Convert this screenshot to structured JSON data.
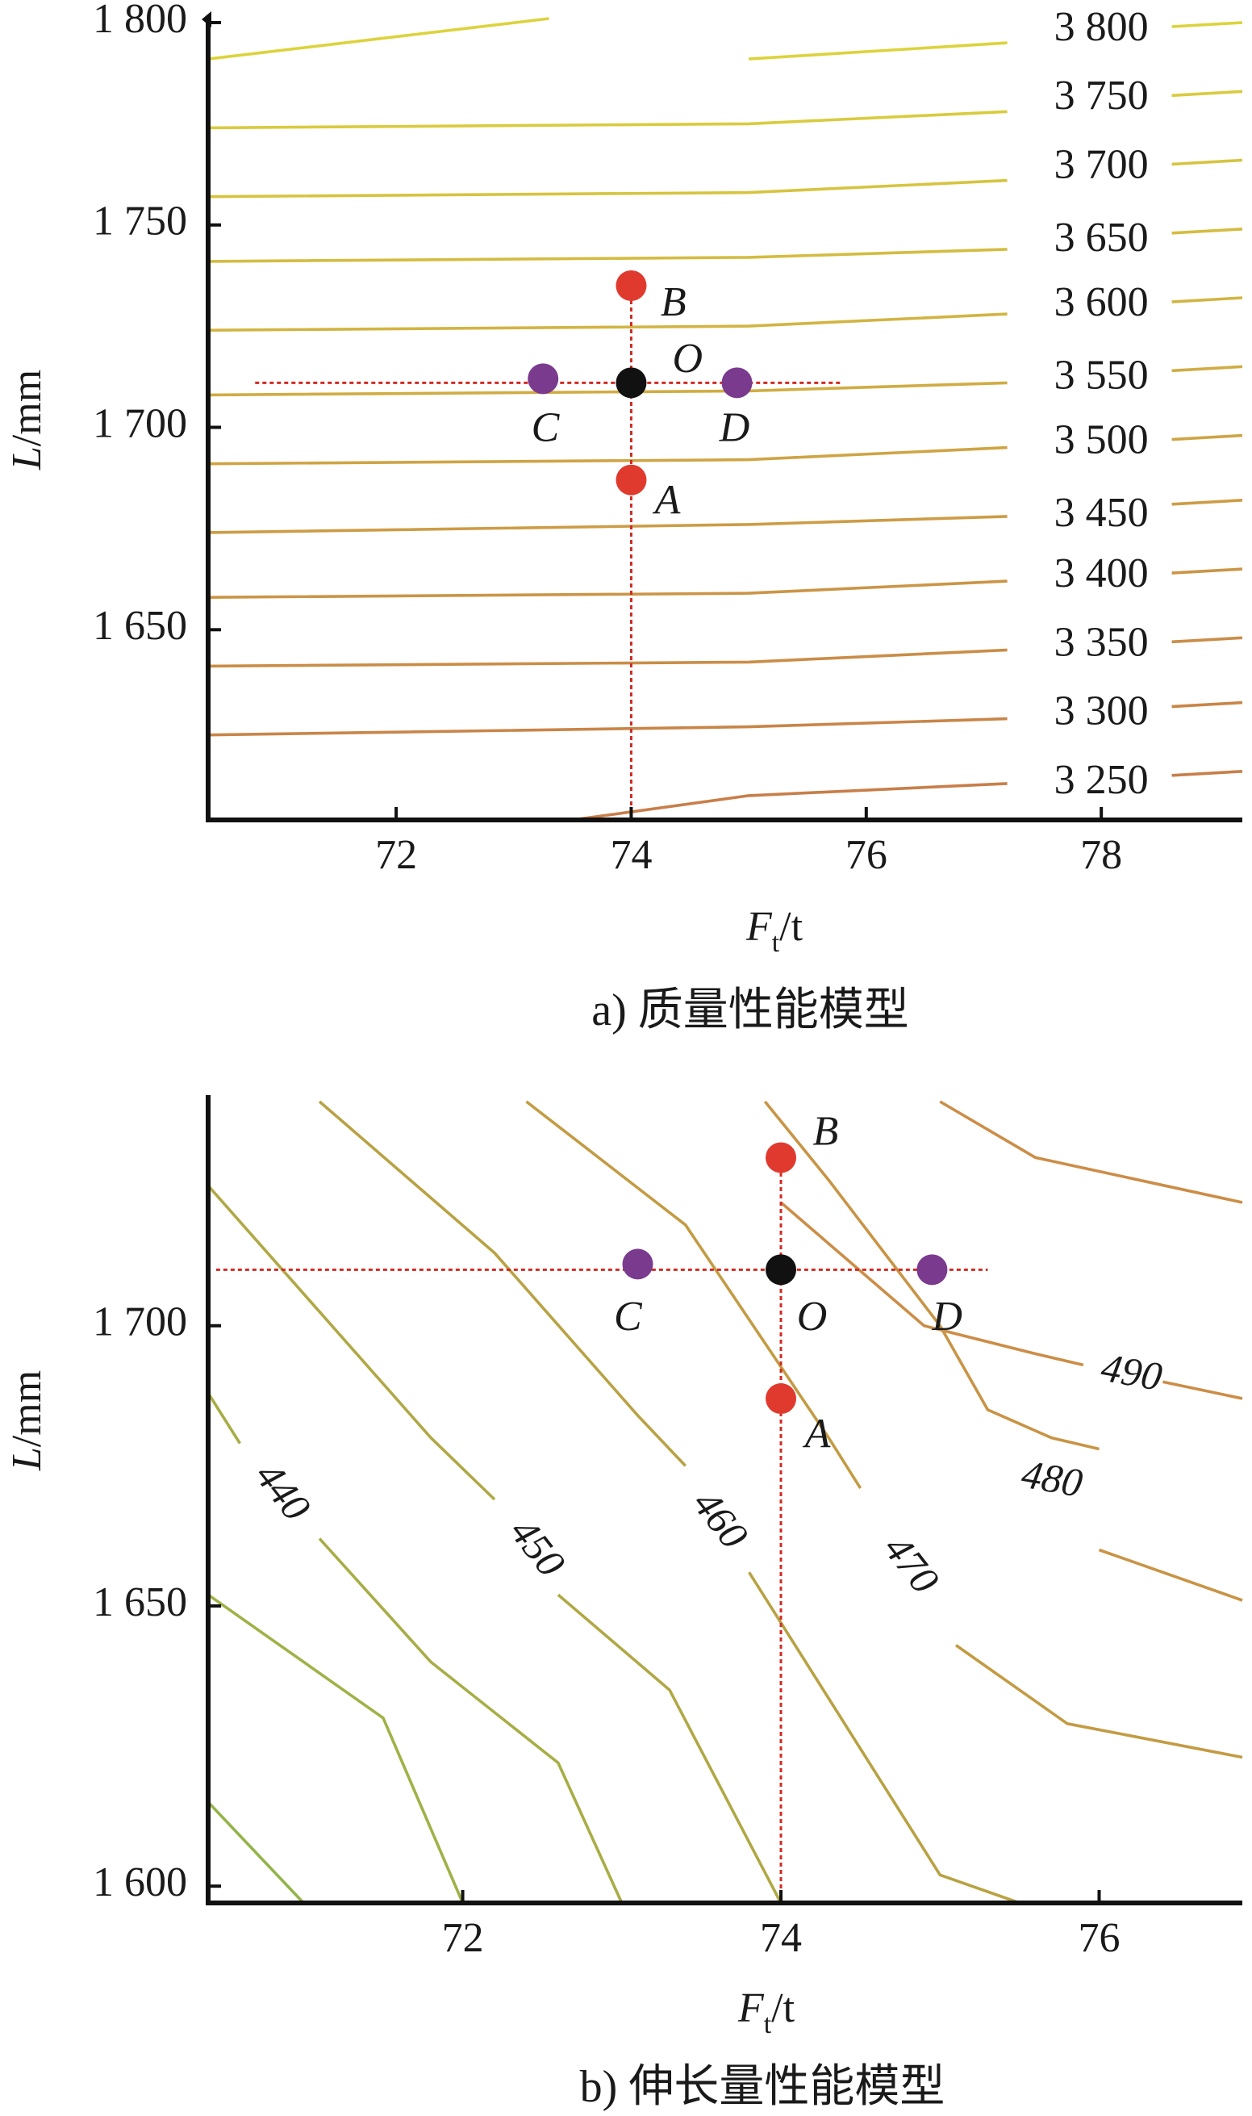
{
  "chart_data": [
    {
      "type": "contour",
      "caption": "a) 质量性能模型",
      "xlabel_main": "F",
      "xlabel_sub": "t",
      "xlabel_unit": "/t",
      "ylabel_main": "L",
      "ylabel_unit": "/mm",
      "xlim": [
        70.4,
        79.2
      ],
      "ylim": [
        1603,
        1800
      ],
      "xticks": [
        72,
        74,
        76,
        78
      ],
      "xtick_labels": [
        "72",
        "74",
        "76",
        "78"
      ],
      "yticks": [
        1650,
        1700,
        1750,
        1800
      ],
      "ytick_labels": [
        "1 650",
        "1 700",
        "1 750",
        "1 800"
      ],
      "contours": [
        {
          "level": "3 800",
          "color": "#dcd33c",
          "points": [
            [
              70.4,
              1791
            ],
            [
              73.3,
              1801
            ]
          ]
        },
        {
          "level": "3 800",
          "color": "#dcd33c",
          "points": [
            [
              75,
              1791
            ],
            [
              77.2,
              1795
            ]
          ]
        },
        {
          "level": "3 750",
          "color": "#d9cb3d",
          "points": [
            [
              70.4,
              1774
            ],
            [
              75,
              1775
            ],
            [
              77.2,
              1778
            ]
          ]
        },
        {
          "level": "3 700",
          "color": "#d6c43f",
          "points": [
            [
              70.4,
              1757
            ],
            [
              75,
              1758
            ],
            [
              77.2,
              1761
            ]
          ]
        },
        {
          "level": "3 650",
          "color": "#d4bc40",
          "points": [
            [
              70.4,
              1741
            ],
            [
              75,
              1742
            ],
            [
              77.2,
              1744
            ]
          ]
        },
        {
          "level": "3 600",
          "color": "#d2b442",
          "points": [
            [
              70.4,
              1724
            ],
            [
              75,
              1725
            ],
            [
              77.2,
              1728
            ]
          ]
        },
        {
          "level": "3 550",
          "color": "#d0ac43",
          "points": [
            [
              70.4,
              1708
            ],
            [
              75,
              1709
            ],
            [
              77.2,
              1711
            ]
          ]
        },
        {
          "level": "3 500",
          "color": "#cfa444",
          "points": [
            [
              70.4,
              1691
            ],
            [
              75,
              1692
            ],
            [
              77.2,
              1695
            ]
          ]
        },
        {
          "level": "3 450",
          "color": "#cd9c45",
          "points": [
            [
              70.4,
              1674
            ],
            [
              75,
              1676
            ],
            [
              77.2,
              1678
            ]
          ]
        },
        {
          "level": "3 400",
          "color": "#cb9546",
          "points": [
            [
              70.4,
              1658
            ],
            [
              75,
              1659
            ],
            [
              77.2,
              1662
            ]
          ]
        },
        {
          "level": "3 350",
          "color": "#ca8d47",
          "points": [
            [
              70.4,
              1641
            ],
            [
              75,
              1642
            ],
            [
              77.2,
              1645
            ]
          ]
        },
        {
          "level": "3 300",
          "color": "#c98548",
          "points": [
            [
              70.4,
              1624
            ],
            [
              75,
              1626
            ],
            [
              77.2,
              1628
            ]
          ]
        },
        {
          "level": "3 250",
          "color": "#c87e49",
          "points": [
            [
              73.5,
              1603
            ],
            [
              75,
              1609
            ],
            [
              77.2,
              1612
            ]
          ]
        }
      ],
      "contour_labels": [
        {
          "text": "3 800",
          "x": 78,
          "y": 1798,
          "color": "#dcd33c",
          "tail": [
            [
              78.6,
              1799
            ],
            [
              79.2,
              1800
            ]
          ]
        },
        {
          "text": "3 750",
          "x": 78,
          "y": 1781,
          "color": "#d9cb3d",
          "tail": [
            [
              78.6,
              1782
            ],
            [
              79.2,
              1783
            ]
          ]
        },
        {
          "text": "3 700",
          "x": 78,
          "y": 1764,
          "color": "#d6c43f",
          "tail": [
            [
              78.6,
              1765
            ],
            [
              79.2,
              1766
            ]
          ]
        },
        {
          "text": "3 650",
          "x": 78,
          "y": 1746,
          "color": "#d4bc40",
          "tail": [
            [
              78.6,
              1748
            ],
            [
              79.2,
              1749
            ]
          ]
        },
        {
          "text": "3 600",
          "x": 78,
          "y": 1730,
          "color": "#d2b442",
          "tail": [
            [
              78.6,
              1731
            ],
            [
              79.2,
              1732
            ]
          ]
        },
        {
          "text": "3 550",
          "x": 78,
          "y": 1712,
          "color": "#d0ac43",
          "tail": [
            [
              78.6,
              1714
            ],
            [
              79.2,
              1715
            ]
          ]
        },
        {
          "text": "3 500",
          "x": 78,
          "y": 1696,
          "color": "#cfa444",
          "tail": [
            [
              78.6,
              1697
            ],
            [
              79.2,
              1698
            ]
          ]
        },
        {
          "text": "3 450",
          "x": 78,
          "y": 1678,
          "color": "#cd9c45",
          "tail": [
            [
              78.6,
              1681
            ],
            [
              79.2,
              1682
            ]
          ]
        },
        {
          "text": "3 400",
          "x": 78,
          "y": 1663,
          "color": "#cb9546",
          "tail": [
            [
              78.6,
              1664
            ],
            [
              79.2,
              1665
            ]
          ]
        },
        {
          "text": "3 350",
          "x": 78,
          "y": 1646,
          "color": "#ca8d47",
          "tail": [
            [
              78.6,
              1647
            ],
            [
              79.2,
              1648
            ]
          ]
        },
        {
          "text": "3 300",
          "x": 78,
          "y": 1629,
          "color": "#c98548",
          "tail": [
            [
              78.6,
              1631
            ],
            [
              79.2,
              1632
            ]
          ]
        },
        {
          "text": "3 250",
          "x": 78,
          "y": 1612,
          "color": "#c87e49",
          "tail": [
            [
              78.6,
              1614
            ],
            [
              79.2,
              1615
            ]
          ]
        }
      ],
      "crosshair": {
        "h": [
          [
            70.8,
            1711
          ],
          [
            75.8,
            1711
          ]
        ],
        "v": [
          [
            74,
            1603
          ],
          [
            74,
            1735
          ]
        ]
      },
      "points": [
        {
          "label": "O",
          "x": 74,
          "y": 1711,
          "color": "#111111",
          "lx": 74.35,
          "ly": 1716
        },
        {
          "label": "A",
          "x": 74,
          "y": 1687,
          "color": "#e03a2e",
          "lx": 74.2,
          "ly": 1681
        },
        {
          "label": "B",
          "x": 74,
          "y": 1735,
          "color": "#e03a2e",
          "lx": 74.25,
          "ly": 1730
        },
        {
          "label": "C",
          "x": 73.25,
          "y": 1712,
          "color": "#7a3a8e",
          "lx": 73.15,
          "ly": 1699
        },
        {
          "label": "D",
          "x": 74.9,
          "y": 1711,
          "color": "#7a3a8e",
          "lx": 74.75,
          "ly": 1699
        }
      ]
    },
    {
      "type": "contour",
      "caption": "b) 伸长量性能模型",
      "xlabel_main": "F",
      "xlabel_sub": "t",
      "xlabel_unit": "/t",
      "ylabel_main": "L",
      "ylabel_unit": "/mm",
      "xlim": [
        70.4,
        76.9
      ],
      "ylim": [
        1597,
        1740
      ],
      "xticks": [
        72,
        74,
        76
      ],
      "xtick_labels": [
        "72",
        "74",
        "76"
      ],
      "yticks": [
        1600,
        1650,
        1700
      ],
      "ytick_labels": [
        "1 600",
        "1 650",
        "1 700"
      ],
      "contours": [
        {
          "level": "",
          "color": "#93b449",
          "points": [
            [
              70.4,
              1615
            ],
            [
              71,
              1597
            ]
          ]
        },
        {
          "level": "",
          "color": "#9fb247",
          "points": [
            [
              70.4,
              1652
            ],
            [
              71.5,
              1630
            ],
            [
              72.0,
              1597
            ]
          ]
        },
        {
          "level": "440",
          "color": "#a8ad45",
          "points": [
            [
              70.4,
              1688
            ],
            [
              70.6,
              1679
            ]
          ]
        },
        {
          "level": "440",
          "color": "#a8ad45",
          "points": [
            [
              71.1,
              1662
            ],
            [
              71.8,
              1640
            ],
            [
              72.6,
              1622
            ],
            [
              73.0,
              1597
            ]
          ]
        },
        {
          "level": "450",
          "color": "#b0a844",
          "points": [
            [
              70.4,
              1725
            ],
            [
              71.8,
              1680
            ],
            [
              72.2,
              1669
            ]
          ]
        },
        {
          "level": "450",
          "color": "#b0a844",
          "points": [
            [
              72.6,
              1652
            ],
            [
              73.3,
              1635
            ],
            [
              74.0,
              1597
            ]
          ]
        },
        {
          "level": "460",
          "color": "#b8a243",
          "points": [
            [
              71.1,
              1740
            ],
            [
              72.2,
              1713
            ],
            [
              73.1,
              1684
            ],
            [
              73.4,
              1675
            ]
          ]
        },
        {
          "level": "460",
          "color": "#b8a243",
          "points": [
            [
              73.8,
              1656
            ],
            [
              75.0,
              1602
            ],
            [
              75.5,
              1597
            ]
          ]
        },
        {
          "level": "470",
          "color": "#c39b43",
          "points": [
            [
              72.4,
              1740
            ],
            [
              73.4,
              1718
            ],
            [
              74.3,
              1680
            ],
            [
              74.5,
              1671
            ]
          ]
        },
        {
          "level": "470",
          "color": "#c39b43",
          "points": [
            [
              75.1,
              1643
            ],
            [
              75.8,
              1629
            ],
            [
              76.9,
              1623
            ]
          ]
        },
        {
          "level": "480",
          "color": "#c89445",
          "points": [
            [
              73.9,
              1740
            ],
            [
              74.3,
              1726
            ],
            [
              75.0,
              1700
            ],
            [
              75.3,
              1685
            ],
            [
              75.7,
              1680
            ],
            [
              76.0,
              1678
            ]
          ]
        },
        {
          "level": "480",
          "color": "#c89445",
          "points": [
            [
              76.0,
              1660
            ],
            [
              76.9,
              1651
            ]
          ]
        },
        {
          "level": "490",
          "color": "#cc8d47",
          "points": [
            [
              75.0,
              1740
            ],
            [
              75.6,
              1730
            ],
            [
              76.9,
              1722
            ]
          ]
        },
        {
          "level": "490",
          "color": "#cc8d47",
          "points": [
            [
              74.0,
              1722
            ],
            [
              74.9,
              1700
            ],
            [
              75.6,
              1695
            ],
            [
              75.9,
              1693
            ]
          ]
        },
        {
          "level": "490",
          "color": "#cc8d47",
          "points": [
            [
              76.4,
              1690
            ],
            [
              76.9,
              1687
            ]
          ]
        }
      ],
      "contour_labels": [
        {
          "text": "440",
          "x": 70.85,
          "y": 1670,
          "angle": 52
        },
        {
          "text": "450",
          "x": 72.45,
          "y": 1660,
          "angle": 52
        },
        {
          "text": "460",
          "x": 73.6,
          "y": 1665,
          "angle": 52
        },
        {
          "text": "470",
          "x": 74.8,
          "y": 1657,
          "angle": 52
        },
        {
          "text": "480",
          "x": 75.7,
          "y": 1672,
          "angle": 10
        },
        {
          "text": "490",
          "x": 76.2,
          "y": 1691,
          "angle": 10
        }
      ],
      "crosshair": {
        "h": [
          [
            70.45,
            1710
          ],
          [
            75.3,
            1710
          ]
        ],
        "v": [
          [
            74,
            1597
          ],
          [
            74,
            1732
          ]
        ]
      },
      "points": [
        {
          "label": "O",
          "x": 74,
          "y": 1710,
          "color": "#111111",
          "lx": 74.1,
          "ly": 1701
        },
        {
          "label": "A",
          "x": 74,
          "y": 1687,
          "color": "#e03a2e",
          "lx": 74.15,
          "ly": 1680
        },
        {
          "label": "B",
          "x": 74,
          "y": 1730,
          "color": "#e03a2e",
          "lx": 74.2,
          "ly": 1734
        },
        {
          "label": "C",
          "x": 73.1,
          "y": 1711,
          "color": "#7a3a8e",
          "lx": 72.95,
          "ly": 1701
        },
        {
          "label": "D",
          "x": 74.95,
          "y": 1710,
          "color": "#7a3a8e",
          "lx": 74.95,
          "ly": 1701
        }
      ]
    }
  ]
}
